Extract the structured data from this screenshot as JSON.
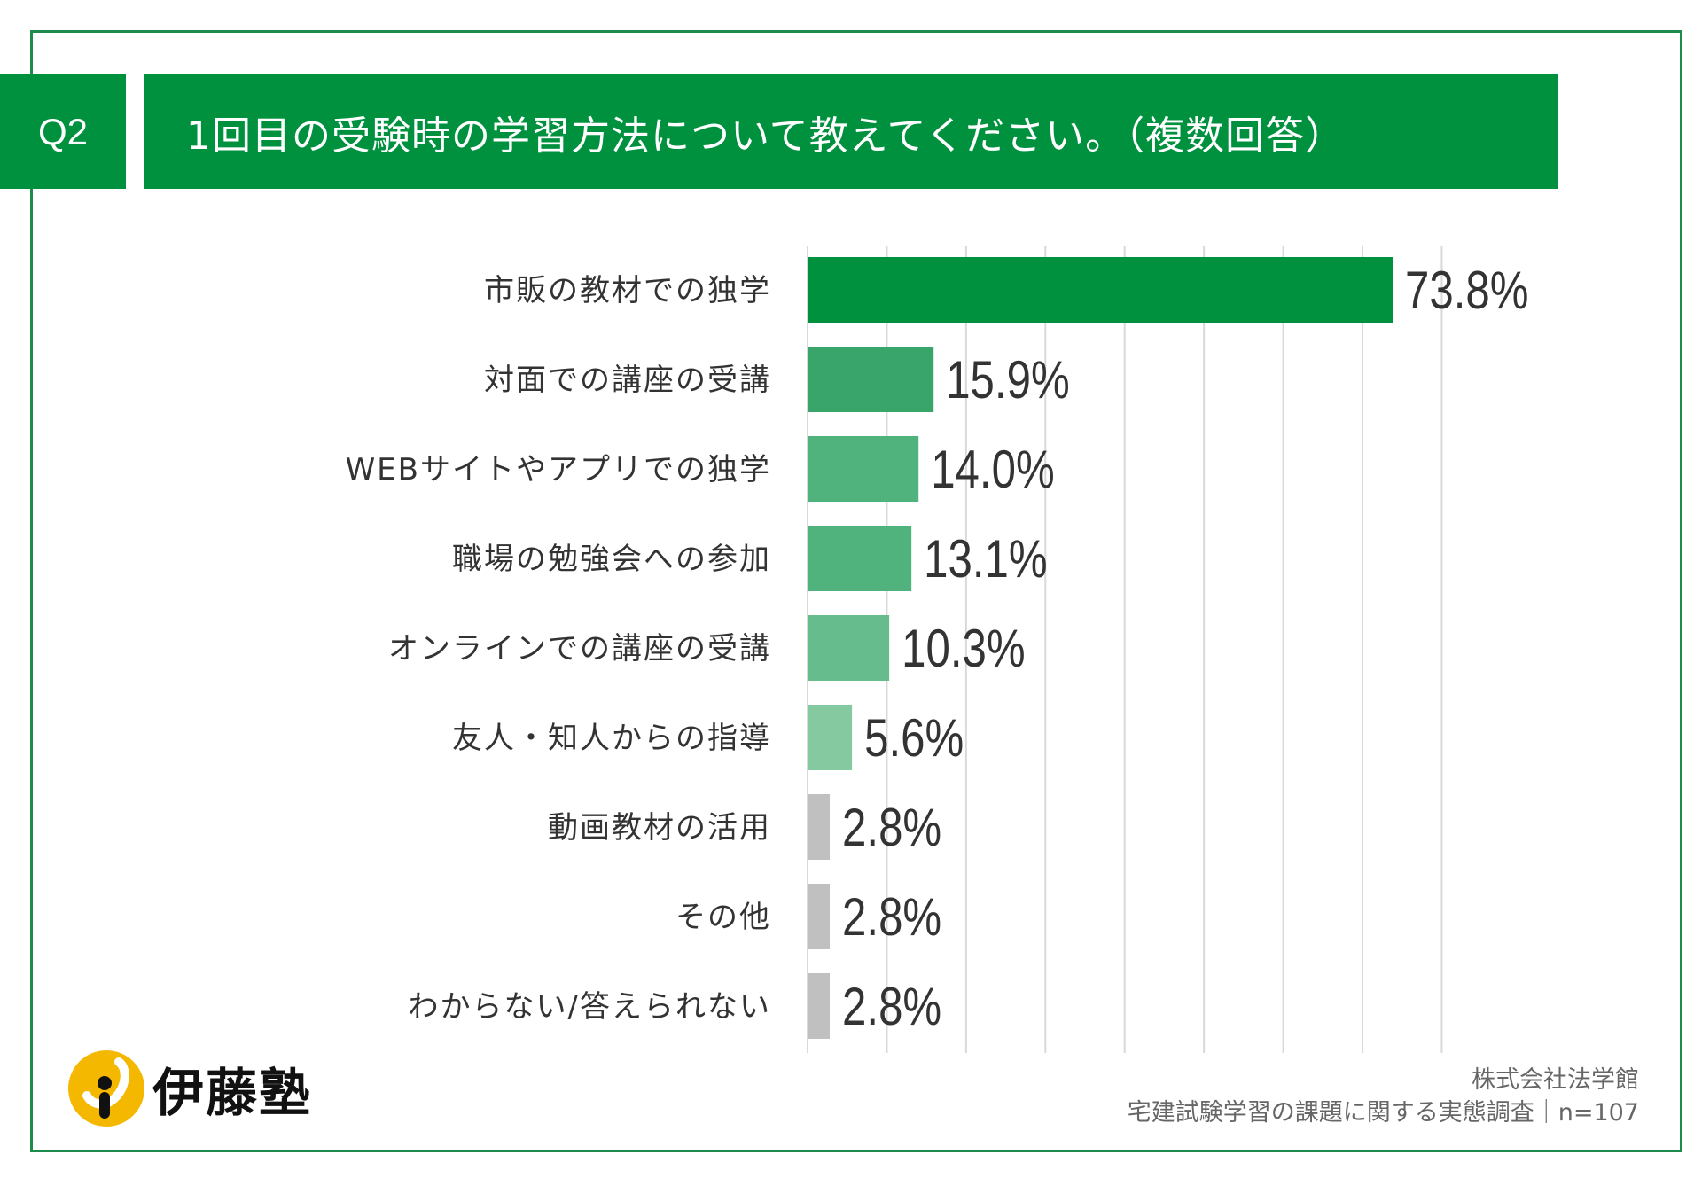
{
  "header": {
    "question_no": "Q2",
    "title": "1回目の受験時の学習方法について教えてください。（複数回答）"
  },
  "chart_data": {
    "type": "bar",
    "orientation": "horizontal",
    "categories": [
      "市販の教材での独学",
      "対面での講座の受講",
      "WEBサイトやアプリでの独学",
      "職場の勉強会への参加",
      "オンラインでの講座の受講",
      "友人・知人からの指導",
      "動画教材の活用",
      "その他",
      "わからない/答えられない"
    ],
    "values": [
      73.8,
      15.9,
      14.0,
      13.1,
      10.3,
      5.6,
      2.8,
      2.8,
      2.8
    ],
    "value_labels": [
      "73.8%",
      "15.9%",
      "14.0%",
      "13.1%",
      "10.3%",
      "5.6%",
      "2.8%",
      "2.8%",
      "2.8%"
    ],
    "colors": [
      "#00913f",
      "#3aa56a",
      "#50b27c",
      "#50b27c",
      "#66bc8c",
      "#85c9a1",
      "#c0c0c0",
      "#c0c0c0",
      "#c0c0c0"
    ],
    "xlim": [
      0,
      80
    ],
    "grid": true,
    "unit": "%"
  },
  "footer": {
    "company": "株式会社法学館",
    "survey": "宅建試験学習の課題に関する実態調査｜n=107"
  },
  "logo": {
    "text": "伊藤塾",
    "color": "#f5b800"
  }
}
